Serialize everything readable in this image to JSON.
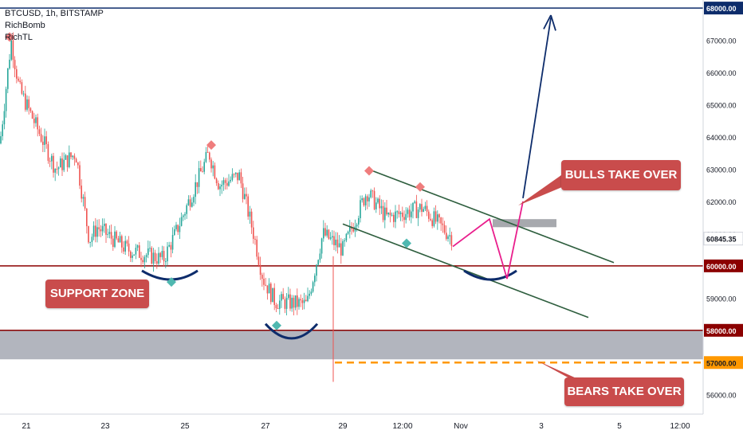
{
  "header": {
    "symbol_line": "BTCUSD, 1h, BITSTAMP",
    "indicators": [
      "RichBomb",
      "RichTL"
    ]
  },
  "chart_data": {
    "type": "line",
    "symbol": "BTCUSD",
    "interval": "1h",
    "exchange": "BITSTAMP",
    "ylim": [
      55400,
      68250
    ],
    "y_ticks": [
      56000,
      57000,
      58000,
      59000,
      60000,
      61000,
      62000,
      63000,
      64000,
      65000,
      66000,
      67000,
      68000
    ],
    "x_tick_labels": [
      "21",
      "23",
      "25",
      "27",
      "29",
      "12:00",
      "Nov",
      "3",
      "5",
      "12:00"
    ],
    "price_path": {
      "x": [
        "Oct 20",
        "Oct 21",
        "Oct 21",
        "Oct 22",
        "Oct 22",
        "Oct 23",
        "Oct 23",
        "Oct 24",
        "Oct 24",
        "Oct 25",
        "Oct 25",
        "Oct 26",
        "Oct 26",
        "Oct 27",
        "Oct 27",
        "Oct 28",
        "Oct 28",
        "Oct 29",
        "Oct 29",
        "Oct 30",
        "Oct 30",
        "Oct 31",
        "Oct 31"
      ],
      "y": [
        63800,
        67000,
        65500,
        63000,
        63500,
        60800,
        61200,
        60500,
        60200,
        61000,
        63500,
        62500,
        62800,
        61000,
        59600,
        58900,
        58800,
        61000,
        60500,
        62300,
        61500,
        61800,
        60850
      ]
    },
    "annotations": {
      "current_price": "60845.35",
      "price_tags": [
        {
          "value": "68000.00",
          "color": "#0d2c6b"
        },
        {
          "value": "60000.00",
          "color": "#8b0000"
        },
        {
          "value": "58000.00",
          "color": "#8b0000"
        },
        {
          "value": "57000.00",
          "color": "#ff9800"
        },
        {
          "value": "60845.35",
          "color": "#ffffff"
        }
      ],
      "labels": [
        "SUPPORT ZONE",
        "BULLS TAKE OVER",
        "BEARS TAKE OVER"
      ],
      "horizontal_levels": [
        68000,
        60000,
        58000,
        57000
      ],
      "support_zone": [
        57100,
        58000
      ]
    },
    "colors": {
      "up": "#26a69a",
      "down": "#ef5350",
      "support": "#8b0000",
      "zone": "#b2b5be",
      "channel": "#2e5e3e",
      "target": "#0d2c6b",
      "projection": "#e91e8c",
      "bearish_level": "#ff9800",
      "callout": "#c94c4c"
    },
    "grid": false
  }
}
